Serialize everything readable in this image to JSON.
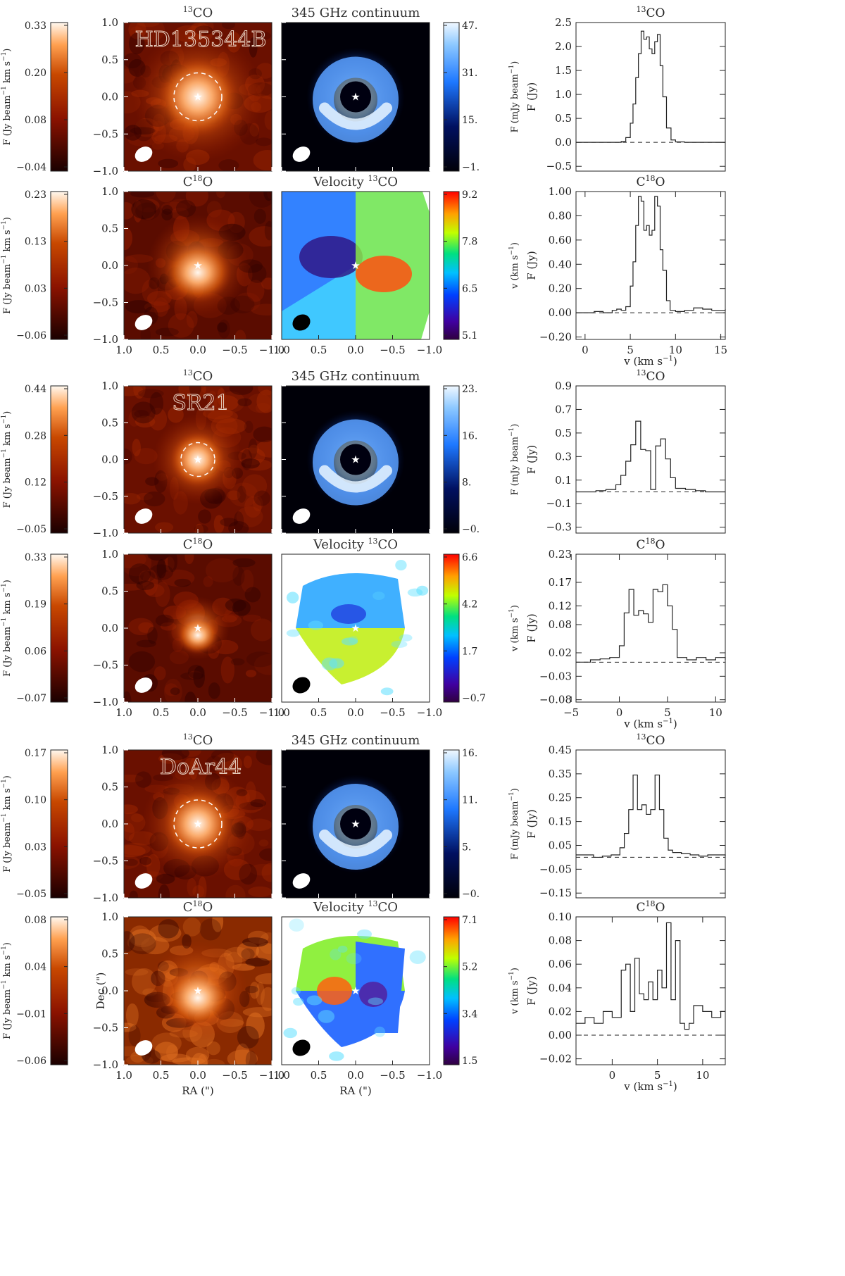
{
  "figure": {
    "labels": {
      "ra": "RA (\")",
      "dec": "Dec (\")",
      "spec_y": "F (Jy)",
      "spec_x": "v (km s",
      "spec_x_sup": "−1",
      "spec_x_close": ")",
      "map_ticks": [
        "1.0",
        "0.5",
        "0.0",
        "−0.5",
        "−1.0"
      ],
      "fluxbar_label": "F (Jy beam",
      "fluxbar_label2": " km s",
      "fluxbar_sup": "−1",
      "cont_label": "F (mJy beam",
      "cont_sup": "−1",
      "vel_label": "v (km s",
      "vel_sup": "−1"
    },
    "titles": {
      "co13_sup": "13",
      "co13": "CO",
      "c18o_pre": "C",
      "c18o_sup": "18",
      "c18o_post": "O",
      "continuum": "345 GHz continuum",
      "velocity": "Velocity ",
      "velocity_sup": "13",
      "velocity_post": "CO"
    },
    "colors": {
      "heat_dark": "#1a0000",
      "heat_mid": "#c84800",
      "heat_light": "#fff8f0",
      "cont_dark": "#000008",
      "cont_blue": "#1e78ff",
      "cont_light": "#f0f8ff"
    }
  },
  "sources": [
    {
      "name": "HD135344B",
      "co13_colorbar": [
        "0.33",
        "0.20",
        "0.08",
        "−0.04"
      ],
      "c18o_colorbar": [
        "0.23",
        "0.13",
        "0.03",
        "−0.06"
      ],
      "continuum_colorbar": [
        "47.",
        "31.",
        "15.",
        "−1."
      ],
      "velocity_colorbar": [
        "9.2",
        "7.8",
        "6.5",
        "5.1"
      ]
    },
    {
      "name": "SR21",
      "co13_colorbar": [
        "0.44",
        "0.28",
        "0.12",
        "−0.05"
      ],
      "c18o_colorbar": [
        "0.33",
        "0.19",
        "0.06",
        "−0.07"
      ],
      "continuum_colorbar": [
        "23.",
        "16.",
        "8.",
        "−0."
      ],
      "velocity_colorbar": [
        "6.6",
        "4.2",
        "1.7",
        "−0.7"
      ]
    },
    {
      "name": "DoAr44",
      "co13_colorbar": [
        "0.17",
        "0.10",
        "0.03",
        "−0.05"
      ],
      "c18o_colorbar": [
        "0.08",
        "0.04",
        "−0.01",
        "−0.06"
      ],
      "continuum_colorbar": [
        "16.",
        "11.",
        "5.",
        "−0."
      ],
      "velocity_colorbar": [
        "7.1",
        "5.2",
        "3.4",
        "1.5"
      ]
    }
  ],
  "chart_data": [
    {
      "type": "line",
      "title": "13CO",
      "source": "HD135344B",
      "xlabel": "",
      "ylabel": "F (Jy)",
      "xlim": [
        -1,
        15.5
      ],
      "ylim": [
        -0.6,
        2.5
      ],
      "xticks": [],
      "yticks": [
        2.5,
        2.0,
        1.5,
        1.0,
        0.5,
        0.0,
        -0.5
      ],
      "ytick_labels": [
        "2.5",
        "2.0",
        "1.5",
        "1.0",
        "0.5",
        "0.0",
        "−0.5"
      ],
      "step": true,
      "x": [
        -1,
        3,
        4,
        4.5,
        5,
        5.3,
        5.6,
        5.9,
        6.2,
        6.5,
        6.8,
        7.1,
        7.4,
        7.7,
        8.0,
        8.3,
        8.6,
        9.0,
        9.5,
        10,
        11,
        12,
        15.5
      ],
      "y": [
        0.0,
        0.0,
        0.02,
        0.1,
        0.4,
        0.8,
        1.35,
        1.85,
        2.32,
        2.15,
        2.2,
        1.95,
        1.85,
        2.1,
        2.25,
        1.6,
        0.95,
        0.3,
        0.05,
        0.01,
        0.0,
        0.0,
        0.0
      ]
    },
    {
      "type": "line",
      "title": "C18O",
      "source": "HD135344B",
      "xlabel": "v (km s−1)",
      "ylabel": "F (Jy)",
      "xlim": [
        -1,
        15.5
      ],
      "ylim": [
        -0.22,
        1.0
      ],
      "xticks": [
        0,
        5,
        10,
        15
      ],
      "xtick_labels": [
        "0",
        "5",
        "10",
        "15"
      ],
      "yticks": [
        1.0,
        0.8,
        0.6,
        0.4,
        0.2,
        0.0,
        -0.2
      ],
      "ytick_labels": [
        "1.00",
        "0.80",
        "0.60",
        "0.40",
        "0.20",
        "0.00",
        "−0.20"
      ],
      "step": true,
      "x": [
        -1,
        1,
        2,
        3,
        3.5,
        4,
        4.5,
        5,
        5.3,
        5.6,
        5.9,
        6.2,
        6.5,
        6.8,
        7.1,
        7.4,
        7.7,
        8.0,
        8.3,
        8.6,
        9.0,
        9.4,
        10,
        11,
        12,
        13,
        14,
        15.5
      ],
      "y": [
        0.0,
        0.01,
        0.0,
        0.02,
        0.03,
        0.02,
        0.05,
        0.22,
        0.42,
        0.72,
        0.96,
        0.92,
        0.68,
        0.72,
        0.64,
        0.68,
        0.96,
        0.88,
        0.52,
        0.35,
        0.1,
        0.02,
        0.01,
        0.02,
        0.04,
        0.03,
        0.02,
        0.03
      ]
    },
    {
      "type": "line",
      "title": "13CO",
      "source": "SR21",
      "xlabel": "",
      "ylabel": "F (Jy)",
      "xlim": [
        -4,
        11
      ],
      "ylim": [
        -0.35,
        0.9
      ],
      "xticks": [],
      "yticks": [
        0.9,
        0.7,
        0.5,
        0.3,
        0.1,
        -0.1,
        -0.3
      ],
      "ytick_labels": [
        "0.9",
        "0.7",
        "0.5",
        "0.3",
        "0.1",
        "−0.1",
        "−0.3"
      ],
      "step": true,
      "x": [
        -4,
        -2,
        -1,
        0,
        0.5,
        1,
        1.5,
        2,
        2.5,
        3,
        3.5,
        4,
        4.5,
        5,
        5.5,
        6,
        7,
        8,
        9,
        11
      ],
      "y": [
        0.0,
        0.01,
        0.02,
        0.06,
        0.14,
        0.26,
        0.4,
        0.6,
        0.36,
        0.35,
        0.02,
        0.39,
        0.45,
        0.28,
        0.12,
        0.03,
        0.02,
        0.01,
        0.0,
        0.0
      ]
    },
    {
      "type": "line",
      "title": "C18O",
      "source": "SR21",
      "xlabel": "v (km s−1)",
      "ylabel": "F (Jy)",
      "xlim": [
        -4.5,
        11
      ],
      "ylim": [
        -0.085,
        0.23
      ],
      "xticks": [
        -5,
        0,
        5,
        10
      ],
      "xtick_labels": [
        "−5",
        "0",
        "5",
        "10"
      ],
      "yticks": [
        0.23,
        0.17,
        0.12,
        0.08,
        0.02,
        -0.03,
        -0.08
      ],
      "ytick_labels": [
        "0.23",
        "0.17",
        "0.12",
        "0.08",
        "0.02",
        "−0.03",
        "−0.08"
      ],
      "step": true,
      "x": [
        -4.5,
        -3,
        -2,
        -1,
        0,
        0.5,
        1,
        1.5,
        2,
        2.5,
        3,
        3.5,
        4,
        4.5,
        5,
        5.5,
        6,
        7,
        8,
        9,
        10,
        11
      ],
      "y": [
        0.0,
        0.005,
        0.007,
        0.01,
        0.035,
        0.105,
        0.155,
        0.1,
        0.11,
        0.103,
        0.085,
        0.155,
        0.15,
        0.165,
        0.12,
        0.07,
        0.01,
        0.005,
        0.01,
        0.005,
        0.01,
        0.005
      ]
    },
    {
      "type": "line",
      "title": "13CO",
      "source": "DoAr44",
      "xlabel": "",
      "ylabel": "F (Jy)",
      "xlim": [
        -4,
        13
      ],
      "ylim": [
        -0.17,
        0.45
      ],
      "xticks": [],
      "yticks": [
        0.45,
        0.35,
        0.25,
        0.15,
        0.05,
        -0.05,
        -0.15
      ],
      "ytick_labels": [
        "0.45",
        "0.35",
        "0.25",
        "0.15",
        "0.05",
        "−0.05",
        "−0.15"
      ],
      "step": true,
      "x": [
        -4,
        -2,
        -1,
        0,
        1,
        1.5,
        2,
        2.5,
        3,
        3.5,
        4,
        4.5,
        5,
        5.5,
        6,
        6.5,
        7,
        8,
        9,
        10,
        11,
        13
      ],
      "y": [
        0.01,
        0.0,
        0.005,
        0.01,
        0.04,
        0.1,
        0.2,
        0.345,
        0.2,
        0.22,
        0.18,
        0.2,
        0.345,
        0.2,
        0.08,
        0.03,
        0.02,
        0.015,
        0.01,
        0.005,
        0.01,
        0.005
      ]
    },
    {
      "type": "line",
      "title": "C18O",
      "source": "DoAr44",
      "xlabel": "v (km s−1)",
      "ylabel": "F (Jy)",
      "xlim": [
        -4,
        12.5
      ],
      "ylim": [
        -0.025,
        0.1
      ],
      "xticks": [
        0,
        5,
        10
      ],
      "xtick_labels": [
        "0",
        "5",
        "10"
      ],
      "yticks": [
        0.1,
        0.08,
        0.06,
        0.04,
        0.02,
        0.0,
        -0.02
      ],
      "ytick_labels": [
        "0.10",
        "0.08",
        "0.06",
        "0.04",
        "0.02",
        "0.00",
        "−0.02"
      ],
      "step": true,
      "x": [
        -4,
        -3,
        -2,
        -1,
        0,
        1,
        1.5,
        2,
        2.5,
        3,
        3.5,
        4,
        4.5,
        5,
        5.5,
        6,
        6.5,
        7,
        7.5,
        8,
        8.5,
        9,
        10,
        11,
        12,
        12.5
      ],
      "y": [
        0.01,
        0.015,
        0.01,
        0.02,
        0.015,
        0.055,
        0.06,
        0.02,
        0.065,
        0.035,
        0.03,
        0.045,
        0.03,
        0.055,
        0.04,
        0.095,
        0.03,
        0.08,
        0.01,
        0.005,
        0.01,
        0.025,
        0.02,
        0.015,
        0.02,
        0.02
      ]
    }
  ]
}
